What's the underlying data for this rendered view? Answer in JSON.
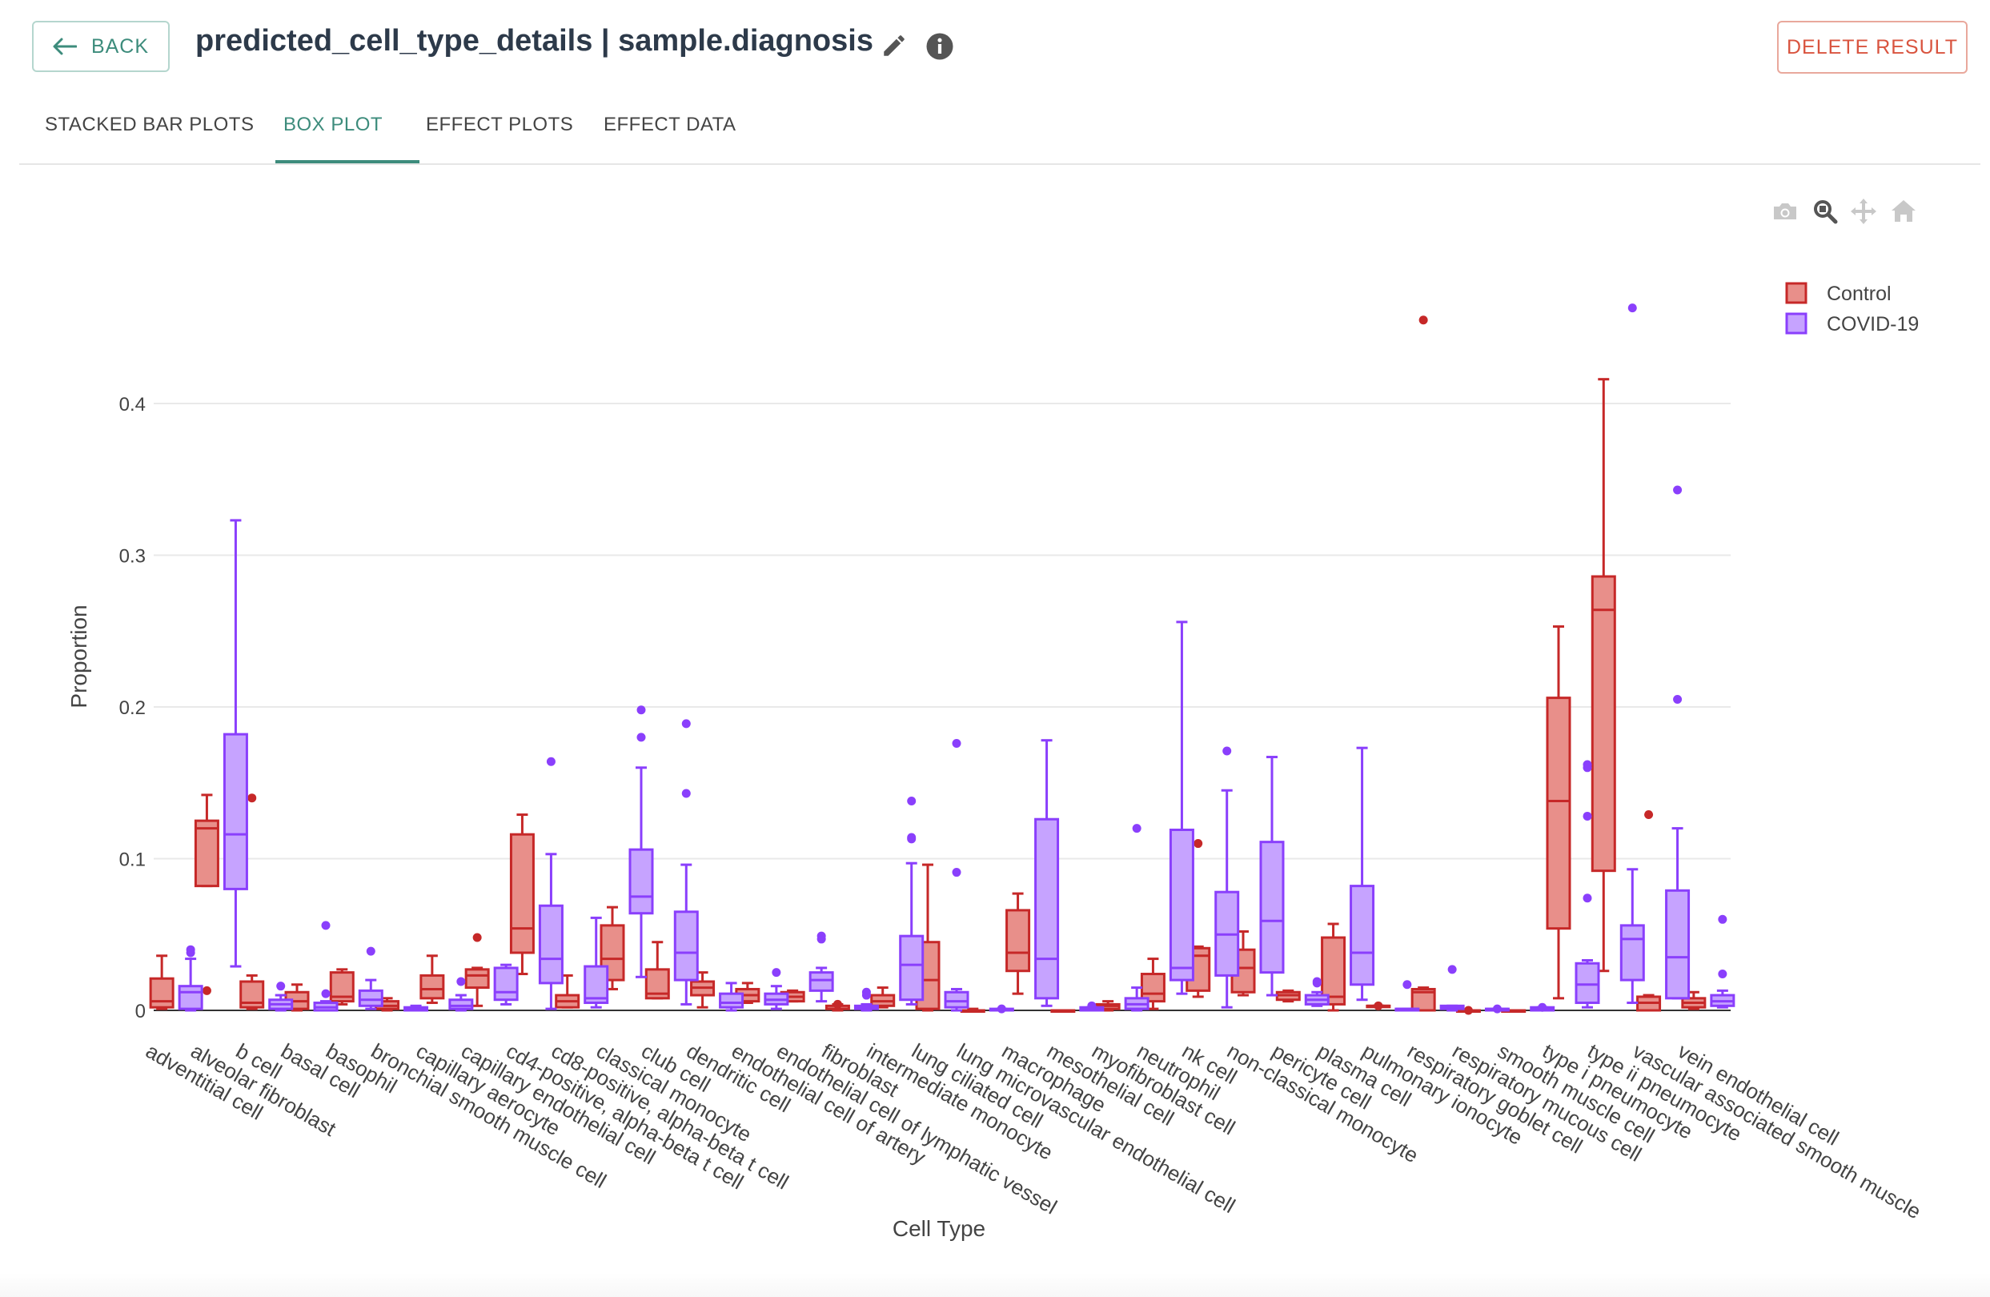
{
  "header": {
    "back_label": "BACK",
    "title": "predicted_cell_type_details | sample.diagnosis",
    "delete_label": "DELETE RESULT"
  },
  "tabs": [
    {
      "label": "STACKED BAR PLOTS",
      "active": false
    },
    {
      "label": "BOX PLOT",
      "active": true
    },
    {
      "label": "EFFECT PLOTS",
      "active": false
    },
    {
      "label": "EFFECT DATA",
      "active": false
    }
  ],
  "modebar": [
    "camera-icon",
    "zoom-icon",
    "pan-icon",
    "home-icon"
  ],
  "colors": {
    "accent": "#3d8c7c",
    "delete": "#d9543f",
    "control_line": "#c62828",
    "control_fill": "#e88f8a",
    "covid_line": "#8a3ffc",
    "covid_fill": "#c6a3ff"
  },
  "chart_data": {
    "type": "box",
    "xlabel": "Cell Type",
    "ylabel": "Proportion",
    "ylim": [
      0,
      0.46
    ],
    "yticks": [
      "0",
      "0.1",
      "0.2",
      "0.3",
      "0.4"
    ],
    "grid": true,
    "legend_position": "top-right",
    "categories": [
      "adventitial cell",
      "alveolar fibroblast",
      "b cell",
      "basal cell",
      "basophil",
      "bronchial smooth muscle cell",
      "capillary aerocyte",
      "capillary endothelial cell",
      "cd4-positive, alpha-beta t cell",
      "cd8-positive, alpha-beta t cell",
      "classical monocyte",
      "club cell",
      "dendritic cell",
      "endothelial cell of artery",
      "endothelial cell of lymphatic vessel",
      "fibroblast",
      "intermediate monocyte",
      "lung ciliated cell",
      "lung microvascular endothelial cell",
      "macrophage",
      "mesothelial cell",
      "myofibroblast cell",
      "neutrophil",
      "nk cell",
      "non-classical monocyte",
      "pericyte cell",
      "plasma cell",
      "pulmonary ionocyte",
      "respiratory goblet cell",
      "respiratory mucous cell",
      "smooth muscle cell",
      "type i pneumocyte",
      "type ii pneumocyte",
      "vascular associated smooth muscle",
      "vein endothelial cell"
    ],
    "series": [
      {
        "name": "Control",
        "boxes": [
          {
            "min": 0.001,
            "q1": 0.002,
            "median": 0.006,
            "q3": 0.021,
            "max": 0.036,
            "outliers": []
          },
          {
            "min": 0.082,
            "q1": 0.082,
            "median": 0.12,
            "q3": 0.125,
            "max": 0.142,
            "outliers": [
              0.013
            ]
          },
          {
            "min": 0.001,
            "q1": 0.002,
            "median": 0.005,
            "q3": 0.019,
            "max": 0.023,
            "outliers": [
              0.14
            ]
          },
          {
            "min": 0.0,
            "q1": 0.001,
            "median": 0.006,
            "q3": 0.012,
            "max": 0.017,
            "outliers": []
          },
          {
            "min": 0.004,
            "q1": 0.006,
            "median": 0.009,
            "q3": 0.025,
            "max": 0.027,
            "outliers": []
          },
          {
            "min": 0.0,
            "q1": 0.001,
            "median": 0.003,
            "q3": 0.006,
            "max": 0.008,
            "outliers": []
          },
          {
            "min": 0.005,
            "q1": 0.008,
            "median": 0.014,
            "q3": 0.023,
            "max": 0.036,
            "outliers": []
          },
          {
            "min": 0.003,
            "q1": 0.015,
            "median": 0.023,
            "q3": 0.027,
            "max": 0.028,
            "outliers": [
              0.048
            ]
          },
          {
            "min": 0.024,
            "q1": 0.038,
            "median": 0.054,
            "q3": 0.116,
            "max": 0.129,
            "outliers": []
          },
          {
            "min": 0.002,
            "q1": 0.002,
            "median": 0.006,
            "q3": 0.01,
            "max": 0.023,
            "outliers": []
          },
          {
            "min": 0.014,
            "q1": 0.02,
            "median": 0.034,
            "q3": 0.056,
            "max": 0.068,
            "outliers": []
          },
          {
            "min": 0.008,
            "q1": 0.008,
            "median": 0.011,
            "q3": 0.027,
            "max": 0.045,
            "outliers": []
          },
          {
            "min": 0.002,
            "q1": 0.01,
            "median": 0.015,
            "q3": 0.019,
            "max": 0.025,
            "outliers": []
          },
          {
            "min": 0.005,
            "q1": 0.006,
            "median": 0.01,
            "q3": 0.014,
            "max": 0.018,
            "outliers": []
          },
          {
            "min": 0.006,
            "q1": 0.006,
            "median": 0.009,
            "q3": 0.012,
            "max": 0.013,
            "outliers": []
          },
          {
            "min": 0.0,
            "q1": 0.001,
            "median": 0.001,
            "q3": 0.003,
            "max": 0.004,
            "outliers": [
              0.004
            ]
          },
          {
            "min": 0.002,
            "q1": 0.003,
            "median": 0.006,
            "q3": 0.01,
            "max": 0.015,
            "outliers": []
          },
          {
            "min": 0.0,
            "q1": 0.001,
            "median": 0.02,
            "q3": 0.045,
            "max": 0.096,
            "outliers": []
          },
          {
            "min": 0.0,
            "q1": 0.0,
            "median": 0.0,
            "q3": 0.0,
            "max": 0.001,
            "outliers": []
          },
          {
            "min": 0.011,
            "q1": 0.026,
            "median": 0.038,
            "q3": 0.066,
            "max": 0.077,
            "outliers": []
          },
          {
            "min": 0.0,
            "q1": 0.0,
            "median": 0.0,
            "q3": 0.0,
            "max": 0.0,
            "outliers": []
          },
          {
            "min": 0.0,
            "q1": 0.001,
            "median": 0.003,
            "q3": 0.004,
            "max": 0.006,
            "outliers": []
          },
          {
            "min": 0.001,
            "q1": 0.006,
            "median": 0.011,
            "q3": 0.024,
            "max": 0.034,
            "outliers": []
          },
          {
            "min": 0.009,
            "q1": 0.013,
            "median": 0.036,
            "q3": 0.041,
            "max": 0.042,
            "outliers": [
              0.11
            ]
          },
          {
            "min": 0.01,
            "q1": 0.012,
            "median": 0.028,
            "q3": 0.04,
            "max": 0.052,
            "outliers": []
          },
          {
            "min": 0.006,
            "q1": 0.007,
            "median": 0.01,
            "q3": 0.012,
            "max": 0.013,
            "outliers": []
          },
          {
            "min": 0.0,
            "q1": 0.004,
            "median": 0.009,
            "q3": 0.048,
            "max": 0.057,
            "outliers": []
          },
          {
            "min": 0.003,
            "q1": 0.003,
            "median": 0.003,
            "q3": 0.003,
            "max": 0.003,
            "outliers": [
              0.003
            ]
          },
          {
            "min": 0.0,
            "q1": 0.0,
            "median": 0.012,
            "q3": 0.014,
            "max": 0.015,
            "outliers": [
              0.455
            ]
          },
          {
            "min": 0.0,
            "q1": 0.0,
            "median": 0.0,
            "q3": 0.0,
            "max": 0.0,
            "outliers": [
              0.0
            ]
          },
          {
            "min": 0.0,
            "q1": 0.0,
            "median": 0.0,
            "q3": 0.0,
            "max": 0.0,
            "outliers": []
          },
          {
            "min": 0.008,
            "q1": 0.054,
            "median": 0.138,
            "q3": 0.206,
            "max": 0.253,
            "outliers": []
          },
          {
            "min": 0.026,
            "q1": 0.092,
            "median": 0.264,
            "q3": 0.286,
            "max": 0.416,
            "outliers": []
          },
          {
            "min": 0.0,
            "q1": 0.0,
            "median": 0.005,
            "q3": 0.009,
            "max": 0.01,
            "outliers": [
              0.129
            ]
          },
          {
            "min": 0.001,
            "q1": 0.002,
            "median": 0.005,
            "q3": 0.008,
            "max": 0.012,
            "outliers": []
          }
        ]
      },
      {
        "name": "COVID-19",
        "boxes": [
          {
            "min": 0.0,
            "q1": 0.001,
            "median": 0.012,
            "q3": 0.016,
            "max": 0.034,
            "outliers": [
              0.038,
              0.04
            ]
          },
          {
            "min": 0.029,
            "q1": 0.08,
            "median": 0.116,
            "q3": 0.182,
            "max": 0.323,
            "outliers": []
          },
          {
            "min": 0.0,
            "q1": 0.001,
            "median": 0.004,
            "q3": 0.007,
            "max": 0.01,
            "outliers": [
              0.016
            ]
          },
          {
            "min": 0.0,
            "q1": 0.0,
            "median": 0.002,
            "q3": 0.005,
            "max": 0.006,
            "outliers": [
              0.011,
              0.056
            ]
          },
          {
            "min": 0.001,
            "q1": 0.003,
            "median": 0.007,
            "q3": 0.013,
            "max": 0.02,
            "outliers": [
              0.039
            ]
          },
          {
            "min": 0.0,
            "q1": 0.0,
            "median": 0.001,
            "q3": 0.002,
            "max": 0.003,
            "outliers": []
          },
          {
            "min": 0.0,
            "q1": 0.001,
            "median": 0.003,
            "q3": 0.007,
            "max": 0.01,
            "outliers": [
              0.019
            ]
          },
          {
            "min": 0.004,
            "q1": 0.007,
            "median": 0.012,
            "q3": 0.028,
            "max": 0.03,
            "outliers": []
          },
          {
            "min": 0.001,
            "q1": 0.018,
            "median": 0.034,
            "q3": 0.069,
            "max": 0.103,
            "outliers": [
              0.164
            ]
          },
          {
            "min": 0.002,
            "q1": 0.005,
            "median": 0.008,
            "q3": 0.029,
            "max": 0.061,
            "outliers": []
          },
          {
            "min": 0.022,
            "q1": 0.064,
            "median": 0.075,
            "q3": 0.106,
            "max": 0.16,
            "outliers": [
              0.18,
              0.198
            ]
          },
          {
            "min": 0.004,
            "q1": 0.02,
            "median": 0.038,
            "q3": 0.065,
            "max": 0.096,
            "outliers": [
              0.143,
              0.189
            ]
          },
          {
            "min": 0.0,
            "q1": 0.002,
            "median": 0.005,
            "q3": 0.011,
            "max": 0.018,
            "outliers": []
          },
          {
            "min": 0.001,
            "q1": 0.004,
            "median": 0.007,
            "q3": 0.011,
            "max": 0.016,
            "outliers": [
              0.025
            ]
          },
          {
            "min": 0.006,
            "q1": 0.013,
            "median": 0.02,
            "q3": 0.025,
            "max": 0.028,
            "outliers": [
              0.047,
              0.049
            ]
          },
          {
            "min": 0.0,
            "q1": 0.001,
            "median": 0.002,
            "q3": 0.003,
            "max": 0.004,
            "outliers": [
              0.01,
              0.012
            ]
          },
          {
            "min": 0.004,
            "q1": 0.007,
            "median": 0.03,
            "q3": 0.049,
            "max": 0.097,
            "outliers": [
              0.113,
              0.114,
              0.138
            ]
          },
          {
            "min": 0.0,
            "q1": 0.002,
            "median": 0.006,
            "q3": 0.012,
            "max": 0.014,
            "outliers": [
              0.091,
              0.176
            ]
          },
          {
            "min": 0.0,
            "q1": 0.0,
            "median": 0.0,
            "q3": 0.001,
            "max": 0.001,
            "outliers": [
              0.001
            ]
          },
          {
            "min": 0.003,
            "q1": 0.008,
            "median": 0.034,
            "q3": 0.126,
            "max": 0.178,
            "outliers": []
          },
          {
            "min": 0.0,
            "q1": 0.0,
            "median": 0.001,
            "q3": 0.002,
            "max": 0.002,
            "outliers": [
              0.003
            ]
          },
          {
            "min": 0.0,
            "q1": 0.001,
            "median": 0.004,
            "q3": 0.008,
            "max": 0.015,
            "outliers": [
              0.12
            ]
          },
          {
            "min": 0.011,
            "q1": 0.02,
            "median": 0.028,
            "q3": 0.119,
            "max": 0.256,
            "outliers": []
          },
          {
            "min": 0.002,
            "q1": 0.023,
            "median": 0.05,
            "q3": 0.078,
            "max": 0.145,
            "outliers": [
              0.171
            ]
          },
          {
            "min": 0.01,
            "q1": 0.025,
            "median": 0.059,
            "q3": 0.111,
            "max": 0.167,
            "outliers": []
          },
          {
            "min": 0.003,
            "q1": 0.004,
            "median": 0.007,
            "q3": 0.01,
            "max": 0.012,
            "outliers": [
              0.018,
              0.019
            ]
          },
          {
            "min": 0.007,
            "q1": 0.017,
            "median": 0.038,
            "q3": 0.082,
            "max": 0.173,
            "outliers": []
          },
          {
            "min": 0.0,
            "q1": 0.0,
            "median": 0.001,
            "q3": 0.001,
            "max": 0.001,
            "outliers": [
              0.017
            ]
          },
          {
            "min": 0.0,
            "q1": 0.001,
            "median": 0.002,
            "q3": 0.003,
            "max": 0.003,
            "outliers": [
              0.027
            ]
          },
          {
            "min": 0.0,
            "q1": 0.0,
            "median": 0.001,
            "q3": 0.001,
            "max": 0.001,
            "outliers": [
              0.001
            ]
          },
          {
            "min": 0.0,
            "q1": 0.0,
            "median": 0.001,
            "q3": 0.002,
            "max": 0.002,
            "outliers": [
              0.002
            ]
          },
          {
            "min": 0.002,
            "q1": 0.005,
            "median": 0.017,
            "q3": 0.031,
            "max": 0.033,
            "outliers": [
              0.074,
              0.128,
              0.16,
              0.162
            ]
          },
          {
            "min": 0.005,
            "q1": 0.02,
            "median": 0.047,
            "q3": 0.056,
            "max": 0.093,
            "outliers": [
              0.463
            ]
          },
          {
            "min": 0.008,
            "q1": 0.008,
            "median": 0.035,
            "q3": 0.079,
            "max": 0.12,
            "outliers": [
              0.205,
              0.343
            ]
          },
          {
            "min": 0.002,
            "q1": 0.003,
            "median": 0.006,
            "q3": 0.01,
            "max": 0.013,
            "outliers": [
              0.024,
              0.06
            ]
          }
        ]
      }
    ]
  }
}
